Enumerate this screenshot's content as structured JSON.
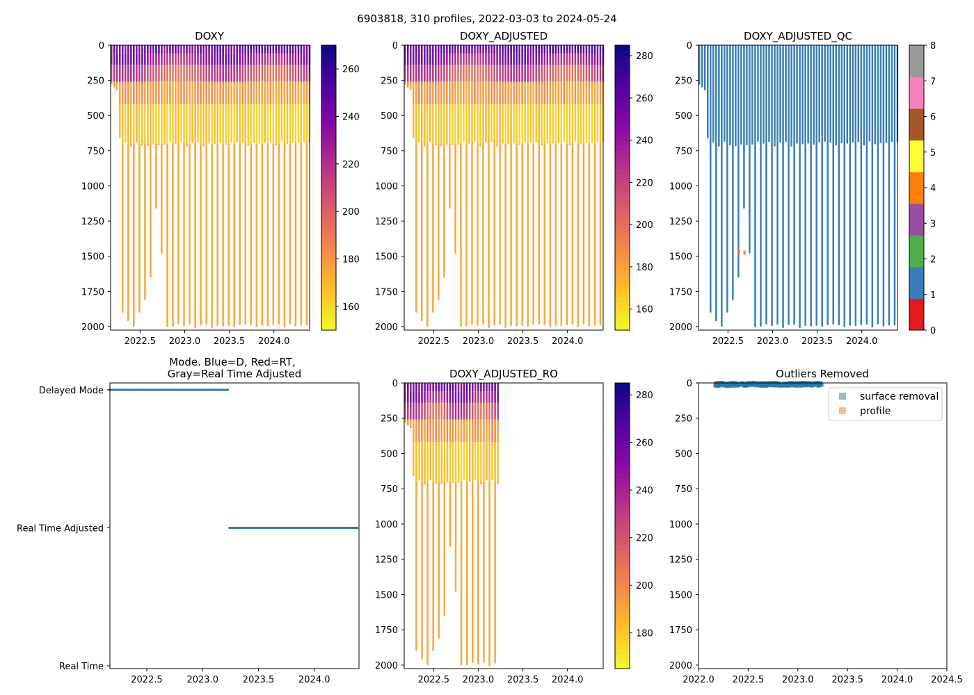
{
  "figure_title": "6903818, 310 profiles, 2022-03-03 to 2024-05-24",
  "colors": {
    "qc_class": [
      "#e41a1c",
      "#377eb8",
      "#4daf4a",
      "#984ea3",
      "#ff7f00",
      "#ffff33",
      "#a65628",
      "#f781bf",
      "#999999"
    ],
    "mode_marker": "#1f77b4",
    "legend_surface": "#1f77b4",
    "legend_profile": "#ff7f0e"
  },
  "chart_data": [
    {
      "name": "doxy",
      "type": "heatmap",
      "title": "DOXY",
      "x_ticks": [
        "2022.5",
        "2023.0",
        "2023.5",
        "2024.0"
      ],
      "x_tick_values": [
        2022.5,
        2023.0,
        2023.5,
        2024.0
      ],
      "xlim": [
        2022.17,
        2024.4
      ],
      "y_ticks": [
        "0",
        "250",
        "500",
        "750",
        "1000",
        "1250",
        "1500",
        "1750",
        "2000"
      ],
      "ylim": [
        2025,
        0
      ],
      "profile_start": 2022.17,
      "profile_end": 2024.39,
      "profile_count": 72,
      "colormap": "plasma_r",
      "colorbar": {
        "ticks": [
          "160",
          "180",
          "200",
          "220",
          "240",
          "260"
        ],
        "tick_values": [
          160,
          180,
          200,
          220,
          240,
          260
        ],
        "range": [
          150,
          270
        ]
      }
    },
    {
      "name": "doxy-adjusted",
      "type": "heatmap",
      "title": "DOXY_ADJUSTED",
      "x_ticks": [
        "2022.5",
        "2023.0",
        "2023.5",
        "2024.0"
      ],
      "x_tick_values": [
        2022.5,
        2023.0,
        2023.5,
        2024.0
      ],
      "xlim": [
        2022.17,
        2024.4
      ],
      "y_ticks": [
        "0",
        "250",
        "500",
        "750",
        "1000",
        "1250",
        "1500",
        "1750",
        "2000"
      ],
      "ylim": [
        2025,
        0
      ],
      "profile_start": 2022.17,
      "profile_end": 2024.39,
      "profile_count": 72,
      "colormap": "plasma_r",
      "colorbar": {
        "ticks": [
          "160",
          "180",
          "200",
          "220",
          "240",
          "260",
          "280"
        ],
        "tick_values": [
          160,
          180,
          200,
          220,
          240,
          260,
          280
        ],
        "range": [
          150,
          285
        ]
      }
    },
    {
      "name": "doxy-adjusted-qc",
      "type": "heatmap",
      "title": "DOXY_ADJUSTED_QC",
      "x_ticks": [
        "2022.5",
        "2023.0",
        "2023.5",
        "2024.0"
      ],
      "x_tick_values": [
        2022.5,
        2023.0,
        2023.5,
        2024.0
      ],
      "xlim": [
        2022.17,
        2024.4
      ],
      "y_ticks": [
        "0",
        "250",
        "500",
        "750",
        "1000",
        "1250",
        "1500",
        "1750",
        "2000"
      ],
      "ylim": [
        2025,
        0
      ],
      "profile_start": 2022.17,
      "profile_end": 2024.39,
      "profile_count": 72,
      "dominant_qc": 1,
      "colorbar": {
        "ticks": [
          "0",
          "1",
          "2",
          "3",
          "4",
          "5",
          "6",
          "7",
          "8"
        ],
        "tick_values": [
          0,
          1,
          2,
          3,
          4,
          5,
          6,
          7,
          8
        ],
        "range": [
          0,
          8
        ]
      }
    },
    {
      "name": "mode",
      "type": "scatter",
      "title_line1": "Mode. Blue=D, Red=RT,",
      "title_line2": "Gray=Real Time Adjusted",
      "x_ticks": [
        "2022.5",
        "2023.0",
        "2023.5",
        "2024.0"
      ],
      "x_tick_values": [
        2022.5,
        2023.0,
        2023.5,
        2024.0
      ],
      "xlim": [
        2022.17,
        2024.4
      ],
      "y_categories": [
        "Delayed Mode",
        "Real Time Adjusted",
        "Real Time"
      ],
      "y_category_values": [
        2,
        1,
        0
      ],
      "ylim": [
        -0.02,
        2.05
      ],
      "series": [
        {
          "name": "Delayed Mode",
          "level": 2,
          "x_start": 2022.17,
          "x_end": 2023.23
        },
        {
          "name": "Real Time Adjusted",
          "level": 1,
          "x_start": 2023.24,
          "x_end": 2024.39
        }
      ]
    },
    {
      "name": "doxy-adjusted-ro",
      "type": "heatmap",
      "title": "DOXY_ADJUSTED_RO",
      "x_ticks": [
        "2022.5",
        "2023.0",
        "2023.5",
        "2024.0"
      ],
      "x_tick_values": [
        2022.5,
        2023.0,
        2023.5,
        2024.0
      ],
      "xlim": [
        2022.17,
        2024.4
      ],
      "y_ticks": [
        "0",
        "250",
        "500",
        "750",
        "1000",
        "1250",
        "1500",
        "1750",
        "2000"
      ],
      "ylim": [
        2025,
        0
      ],
      "profile_start": 2022.17,
      "profile_end": 2023.21,
      "profile_count": 34,
      "colormap": "plasma_r",
      "colorbar": {
        "ticks": [
          "180",
          "200",
          "220",
          "240",
          "260",
          "280"
        ],
        "tick_values": [
          180,
          200,
          220,
          240,
          260,
          280
        ],
        "range": [
          165,
          285
        ]
      }
    },
    {
      "name": "outliers-removed",
      "type": "scatter",
      "title": "Outliers Removed",
      "x_ticks": [
        "2022.0",
        "2022.5",
        "2023.0",
        "2023.5",
        "2024.0",
        "2024.5"
      ],
      "x_tick_values": [
        2022.0,
        2022.5,
        2023.0,
        2023.5,
        2024.0,
        2024.5
      ],
      "xlim": [
        2022.0,
        2024.5
      ],
      "y_ticks": [
        "0",
        "250",
        "500",
        "750",
        "1000",
        "1250",
        "1500",
        "1750",
        "2000"
      ],
      "ylim": [
        2025,
        0
      ],
      "legend": [
        "surface removal",
        "profile"
      ],
      "legend_position": "top-right",
      "series": [
        {
          "name": "surface removal",
          "x_start": 2022.17,
          "x_end": 2023.24,
          "depth_min": 0,
          "depth_max": 20
        },
        {
          "name": "profile",
          "x_start": 2022.17,
          "x_end": 2022.24,
          "depth_min": 0,
          "depth_max": 22
        }
      ]
    }
  ]
}
